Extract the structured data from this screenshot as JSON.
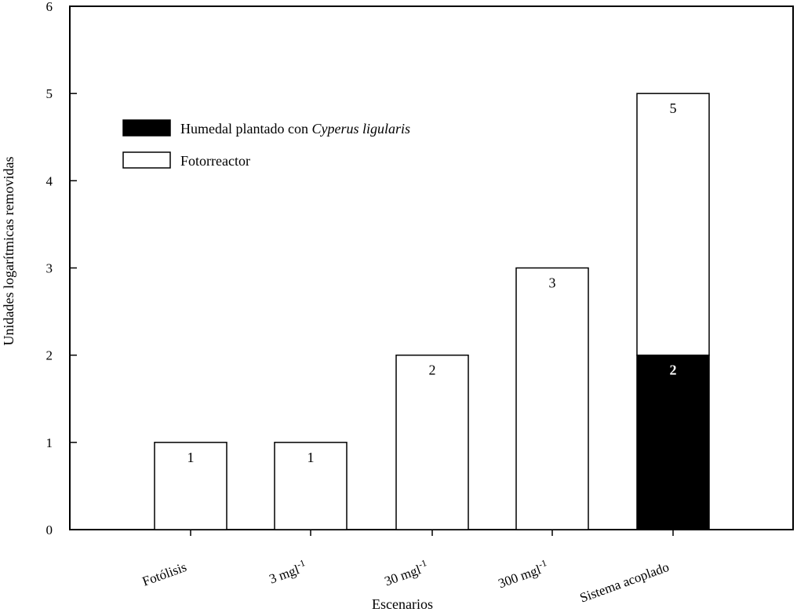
{
  "chart_data": {
    "type": "bar",
    "stacked": true,
    "categories": [
      {
        "base": "Fotólisis",
        "sup": ""
      },
      {
        "base": "3 mgl",
        "sup": "-1"
      },
      {
        "base": "30 mgl",
        "sup": "-1"
      },
      {
        "base": "300 mgl",
        "sup": "-1"
      },
      {
        "base": "Sistema acoplado",
        "sup": ""
      }
    ],
    "series": [
      {
        "name": "Humedal plantado con Cyperus ligularis",
        "name_plain": "Humedal plantado con ",
        "name_italic": "Cyperus ligularis",
        "color": "#000000",
        "values": [
          0,
          0,
          0,
          0,
          2
        ]
      },
      {
        "name": "Fotorreactor",
        "color": "#ffffff",
        "values": [
          1,
          1,
          2,
          3,
          3
        ]
      }
    ],
    "bar_labels": [
      [
        {
          "text": "1",
          "at": 1
        }
      ],
      [
        {
          "text": "1",
          "at": 1
        }
      ],
      [
        {
          "text": "2",
          "at": 2
        }
      ],
      [
        {
          "text": "3",
          "at": 3
        }
      ],
      [
        {
          "text": "5",
          "at": 5
        },
        {
          "text": "2",
          "at": 2,
          "inverse": true
        }
      ]
    ],
    "title": "",
    "xlabel": "Escenarios",
    "ylabel": "Unidades logarítmicas removidas",
    "ylim": [
      0,
      6
    ],
    "yticks": [
      0,
      1,
      2,
      3,
      4,
      5,
      6
    ],
    "grid": false,
    "legend_position": "top-left"
  }
}
